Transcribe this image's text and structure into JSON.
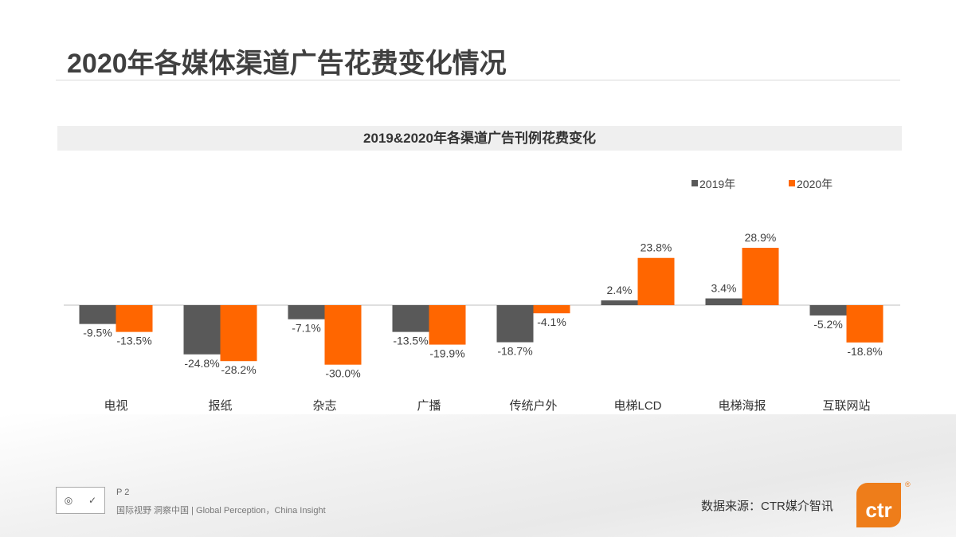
{
  "page": {
    "title": "2020年各媒体渠道广告花费变化情况",
    "page_number": "P 2",
    "slogan": "国际视野  洞察中国 |  Global Perception，China Insight",
    "source": "数据来源：CTR媒介智讯",
    "logo_text": "ctr",
    "logo_color": "#ee7d1a"
  },
  "chart_data": {
    "type": "bar",
    "title": "2019&2020年各渠道广告刊例花费变化",
    "categories": [
      "电视",
      "报纸",
      "杂志",
      "广播",
      "传统户外",
      "电梯LCD",
      "电梯海报",
      "互联网站"
    ],
    "series": [
      {
        "name": "2019年",
        "color": "#595959",
        "values": [
          -9.5,
          -24.8,
          -7.1,
          -13.5,
          -18.7,
          2.4,
          3.4,
          -5.2
        ],
        "labels": [
          "-9.5%",
          "-24.8%",
          "-7.1%",
          "-13.5%",
          "-18.7%",
          "2.4%",
          "3.4%",
          "-5.2%"
        ]
      },
      {
        "name": "2020年",
        "color": "#ff6600",
        "values": [
          -13.5,
          -28.2,
          -30.0,
          -19.9,
          -4.1,
          23.8,
          28.9,
          -18.8
        ],
        "labels": [
          "-13.5%",
          "-28.2%",
          "-30.0%",
          "-19.9%",
          "-4.1%",
          "23.8%",
          "28.9%",
          "-18.8%"
        ]
      }
    ],
    "unit": "%",
    "legend": "top-right",
    "grid": false
  }
}
